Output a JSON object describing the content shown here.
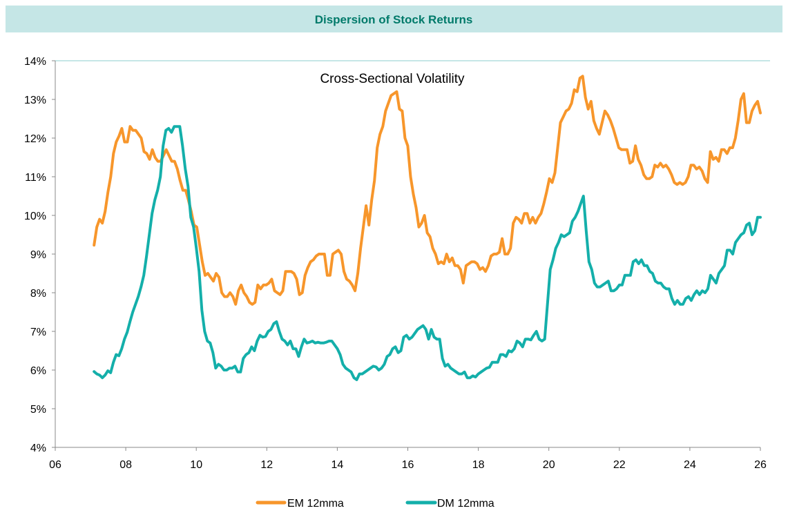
{
  "header": {
    "title": "Dispersion of Stock Returns"
  },
  "colors": {
    "header_bg": "#C5E6E6",
    "header_text": "#007A6A",
    "em": "#F7962B",
    "dm": "#14AFAA",
    "axis": "#888888"
  },
  "chart_data": {
    "type": "line",
    "annotation": "Cross-Sectional Volatility",
    "xlabel": "",
    "ylabel": "",
    "xlim": [
      2006,
      2026
    ],
    "ylim": [
      4,
      14
    ],
    "x_ticks": [
      2006,
      2008,
      2010,
      2012,
      2014,
      2016,
      2018,
      2020,
      2022,
      2024,
      2026
    ],
    "x_tick_labels": [
      "06",
      "08",
      "10",
      "12",
      "14",
      "16",
      "18",
      "20",
      "22",
      "24",
      "26"
    ],
    "y_ticks": [
      4,
      5,
      6,
      7,
      8,
      9,
      10,
      11,
      12,
      13,
      14
    ],
    "y_tick_labels": [
      "4%",
      "5%",
      "6%",
      "7%",
      "8%",
      "9%",
      "10%",
      "11%",
      "12%",
      "13%",
      "14%"
    ],
    "grid": "top line only",
    "legend": "bottom",
    "series": [
      {
        "name": "EM 12mma",
        "color": "#F7962B",
        "x_start": 2007.1,
        "x_end": 2026.0,
        "values": [
          9.23,
          9.7,
          9.9,
          9.8,
          10.1,
          10.6,
          11.0,
          11.6,
          11.9,
          12.05,
          12.25,
          11.9,
          11.9,
          12.3,
          12.2,
          12.2,
          12.1,
          12.0,
          11.65,
          11.6,
          11.45,
          11.7,
          11.5,
          11.4,
          11.4,
          11.55,
          11.7,
          11.55,
          11.4,
          11.4,
          11.2,
          10.9,
          10.65,
          10.65,
          10.4,
          10.1,
          9.75,
          9.7,
          9.25,
          8.8,
          8.45,
          8.5,
          8.4,
          8.3,
          8.5,
          8.4,
          8.0,
          7.9,
          7.9,
          8.0,
          7.9,
          7.7,
          8.05,
          8.2,
          8.0,
          7.9,
          7.75,
          7.7,
          7.75,
          8.2,
          8.1,
          8.2,
          8.2,
          8.25,
          8.35,
          8.05,
          8.0,
          7.95,
          8.05,
          8.55,
          8.55,
          8.55,
          8.5,
          8.35,
          7.95,
          8.0,
          8.45,
          8.65,
          8.8,
          8.85,
          8.95,
          9.0,
          9.0,
          9.0,
          8.45,
          8.45,
          9.0,
          9.05,
          9.1,
          9.0,
          8.55,
          8.35,
          8.3,
          8.2,
          8.05,
          8.5,
          9.15,
          9.7,
          10.25,
          9.75,
          10.4,
          10.9,
          11.75,
          12.1,
          12.3,
          12.7,
          12.9,
          13.1,
          13.15,
          13.2,
          12.75,
          12.7,
          12.0,
          11.8,
          11.0,
          10.55,
          10.2,
          9.7,
          9.8,
          10.0,
          9.55,
          9.45,
          9.15,
          9.0,
          8.75,
          8.8,
          8.75,
          9.0,
          8.8,
          8.9,
          8.7,
          8.7,
          8.6,
          8.25,
          8.7,
          8.75,
          8.8,
          8.8,
          8.75,
          8.6,
          8.65,
          8.55,
          8.7,
          8.95,
          9.0,
          9.0,
          9.05,
          9.4,
          9.0,
          9.0,
          9.15,
          9.8,
          9.95,
          9.9,
          9.8,
          10.05,
          10.05,
          9.8,
          9.95,
          9.8,
          9.95,
          10.05,
          10.3,
          10.6,
          10.95,
          10.85,
          11.1,
          11.75,
          12.4,
          12.55,
          12.7,
          12.75,
          12.9,
          13.25,
          13.2,
          13.55,
          13.6,
          13.05,
          12.75,
          12.95,
          12.45,
          12.25,
          12.1,
          12.4,
          12.7,
          12.6,
          12.45,
          12.25,
          12.0,
          11.75,
          11.7,
          11.7,
          11.7,
          11.35,
          11.4,
          11.8,
          11.45,
          11.3,
          11.05,
          10.95,
          10.95,
          11.0,
          11.3,
          11.25,
          11.35,
          11.25,
          11.3,
          11.2,
          11.05,
          10.85,
          10.8,
          10.85,
          10.8,
          10.85,
          11.0,
          11.3,
          11.3,
          11.2,
          11.25,
          11.15,
          10.95,
          10.85,
          11.65,
          11.45,
          11.5,
          11.4,
          11.7,
          11.7,
          11.6,
          11.75,
          11.75,
          12.0,
          12.45,
          13.0,
          13.15,
          12.4,
          12.4,
          12.7,
          12.85,
          12.95,
          12.65
        ]
      },
      {
        "name": "DM 12mma",
        "color": "#14AFAA",
        "x_start": 2007.1,
        "x_end": 2026.0,
        "values": [
          5.96,
          5.9,
          5.87,
          5.8,
          5.87,
          5.98,
          5.93,
          6.2,
          6.4,
          6.37,
          6.55,
          6.8,
          6.98,
          7.25,
          7.5,
          7.7,
          7.9,
          8.15,
          8.45,
          8.95,
          9.5,
          10.05,
          10.4,
          10.65,
          11.0,
          11.8,
          12.2,
          12.25,
          12.15,
          12.3,
          12.3,
          12.3,
          11.8,
          11.2,
          10.75,
          9.95,
          9.7,
          9.15,
          8.55,
          7.55,
          7.0,
          6.75,
          6.7,
          6.45,
          6.05,
          6.15,
          6.1,
          6.0,
          6.0,
          6.05,
          6.05,
          6.1,
          5.95,
          5.95,
          6.3,
          6.4,
          6.45,
          6.6,
          6.5,
          6.75,
          6.9,
          6.85,
          6.87,
          7.0,
          7.05,
          7.2,
          7.25,
          7.0,
          6.8,
          6.75,
          6.65,
          6.75,
          6.55,
          6.55,
          6.35,
          6.6,
          6.8,
          6.7,
          6.72,
          6.75,
          6.7,
          6.72,
          6.7,
          6.7,
          6.72,
          6.75,
          6.75,
          6.65,
          6.55,
          6.4,
          6.15,
          6.05,
          6.0,
          5.95,
          5.8,
          5.75,
          5.9,
          5.9,
          5.95,
          6.0,
          6.05,
          6.1,
          6.08,
          6.0,
          6.05,
          6.15,
          6.35,
          6.4,
          6.55,
          6.6,
          6.45,
          6.5,
          6.85,
          6.9,
          6.8,
          6.85,
          6.95,
          7.05,
          7.1,
          7.15,
          7.05,
          6.8,
          7.05,
          6.85,
          6.8,
          6.8,
          6.3,
          6.1,
          6.15,
          6.05,
          6.0,
          5.95,
          5.9,
          5.9,
          5.95,
          5.8,
          5.8,
          5.85,
          5.82,
          5.9,
          5.95,
          6.0,
          6.05,
          6.07,
          6.2,
          6.2,
          6.2,
          6.4,
          6.4,
          6.35,
          6.5,
          6.47,
          6.55,
          6.75,
          6.7,
          6.6,
          6.8,
          6.8,
          6.78,
          6.9,
          7.0,
          6.8,
          6.75,
          6.8,
          7.7,
          8.6,
          8.85,
          9.15,
          9.3,
          9.5,
          9.45,
          9.5,
          9.55,
          9.85,
          9.95,
          10.1,
          10.3,
          10.5,
          9.6,
          8.8,
          8.6,
          8.25,
          8.15,
          8.15,
          8.2,
          8.25,
          8.3,
          8.05,
          8.05,
          8.1,
          8.2,
          8.2,
          8.45,
          8.45,
          8.45,
          8.8,
          8.85,
          8.75,
          8.85,
          8.7,
          8.7,
          8.55,
          8.5,
          8.3,
          8.25,
          8.25,
          8.15,
          8.1,
          8.1,
          7.85,
          7.7,
          7.8,
          7.7,
          7.7,
          7.85,
          7.9,
          7.8,
          7.95,
          8.05,
          7.95,
          8.05,
          8.0,
          8.1,
          8.45,
          8.35,
          8.25,
          8.5,
          8.6,
          8.7,
          9.1,
          9.1,
          9.0,
          9.3,
          9.4,
          9.5,
          9.55,
          9.75,
          9.8,
          9.5,
          9.6,
          9.95,
          9.95
        ]
      }
    ]
  }
}
